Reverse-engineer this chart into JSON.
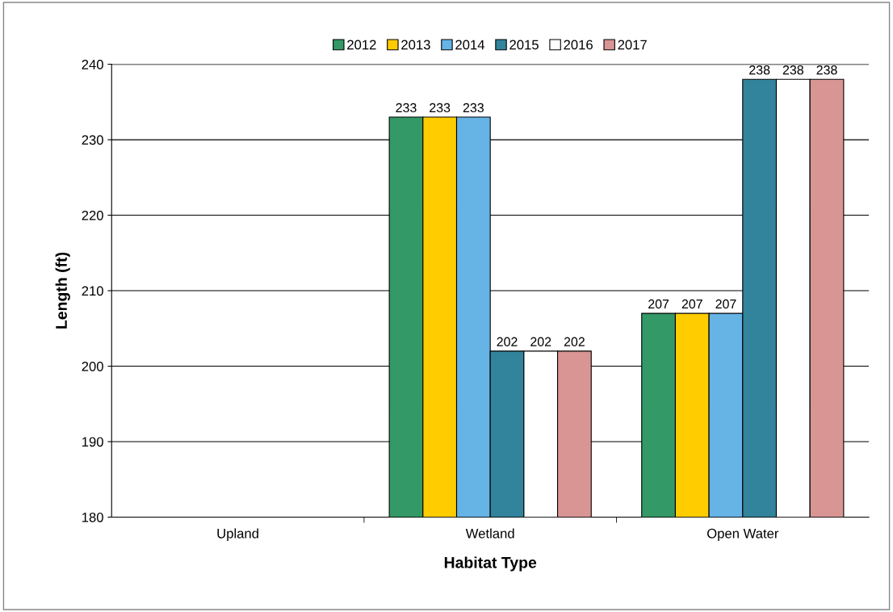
{
  "chart_data": {
    "type": "bar",
    "xlabel": "Habitat Type",
    "ylabel": "Length (ft)",
    "categories": [
      "Upland",
      "Wetland",
      "Open Water"
    ],
    "series": [
      {
        "name": "2012",
        "color": "#339966",
        "values": [
          null,
          233,
          207
        ]
      },
      {
        "name": "2013",
        "color": "#ffcc00",
        "values": [
          null,
          233,
          207
        ]
      },
      {
        "name": "2014",
        "color": "#66b3e6",
        "values": [
          null,
          233,
          207
        ]
      },
      {
        "name": "2015",
        "color": "#31849b",
        "values": [
          null,
          202,
          238
        ]
      },
      {
        "name": "2016",
        "color": "#ffffff",
        "values": [
          null,
          202,
          238
        ]
      },
      {
        "name": "2017",
        "color": "#d99594",
        "values": [
          null,
          202,
          238
        ]
      }
    ],
    "ylim": [
      180,
      240
    ],
    "yticks": [
      180,
      190,
      200,
      210,
      220,
      230,
      240
    ],
    "grid": "y",
    "legend": "top",
    "data_labels": true
  }
}
